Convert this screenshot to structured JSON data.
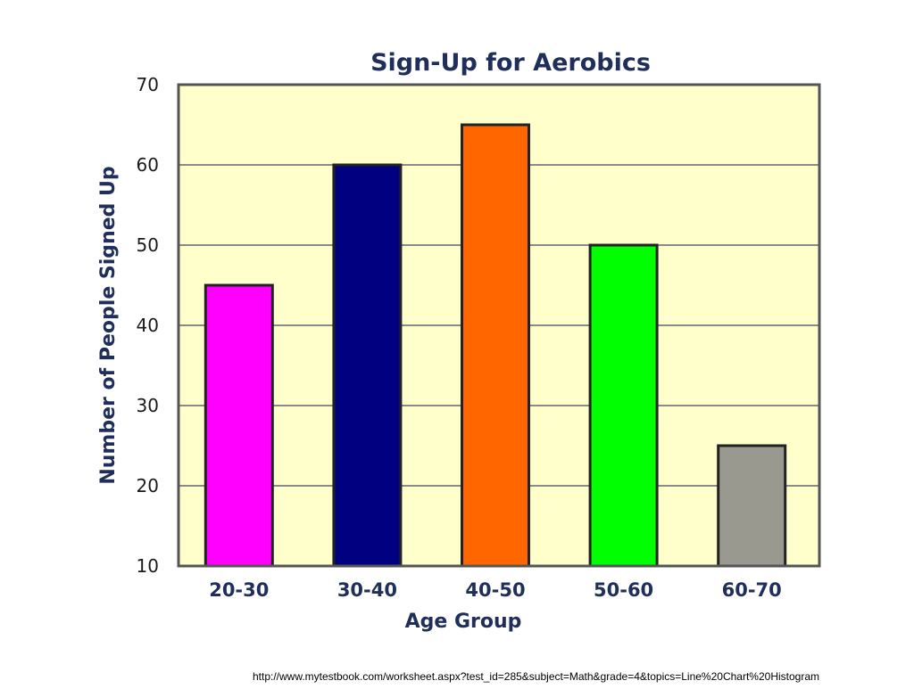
{
  "source_url": "http://www.mytestbook.com/worksheet.aspx?test_id=285&subject=Math&grade=4&topics=Line%20Chart%20Histogram",
  "chart_data": {
    "type": "bar",
    "title": "Sign-Up for Aerobics",
    "xlabel": "Age Group",
    "ylabel": "Number of People Signed Up",
    "categories": [
      "20-30",
      "30-40",
      "40-50",
      "50-60",
      "60-70"
    ],
    "values": [
      45,
      60,
      65,
      50,
      25
    ],
    "bar_colors": [
      "#ff00ff",
      "#000080",
      "#ff6600",
      "#00ff00",
      "#999990"
    ],
    "ylim": [
      10,
      70
    ],
    "yticks": [
      10,
      20,
      30,
      40,
      50,
      60,
      70
    ],
    "grid": true,
    "plot_background": "#ffffcc",
    "legend": "none"
  }
}
